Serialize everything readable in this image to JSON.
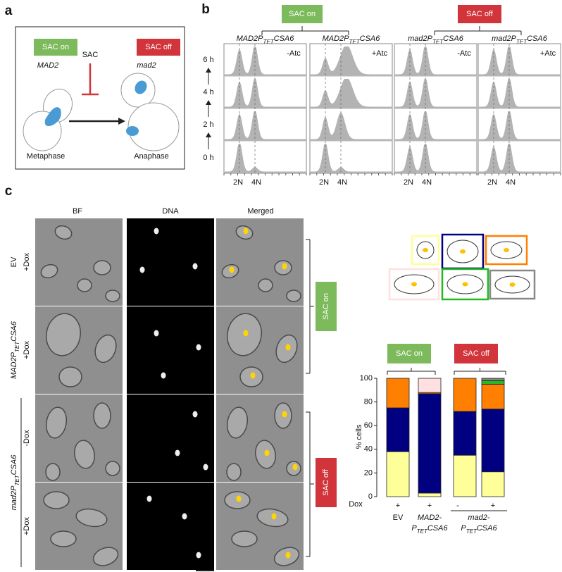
{
  "panel_a": {
    "label": "a",
    "sac_on": "SAC on",
    "sac_off": "SAC off",
    "sac": "SAC",
    "gene_on": "MAD2",
    "gene_off": "mad2",
    "stage_left": "Metaphase",
    "stage_right": "Anaphase"
  },
  "panel_b": {
    "label": "b",
    "sac_on": "SAC on",
    "sac_off": "SAC off",
    "columns": [
      {
        "title": [
          "MAD2P",
          "TET",
          "CSA6"
        ],
        "condition": "-Atc"
      },
      {
        "title": [
          "MAD2P",
          "TET",
          "CSA6"
        ],
        "condition": "+Atc"
      },
      {
        "title": [
          "mad2P",
          "TET",
          "CSA6"
        ],
        "condition": "-Atc"
      },
      {
        "title": [
          "mad2P",
          "TET",
          "CSA6"
        ],
        "condition": "+Atc"
      }
    ],
    "times": [
      "6 h",
      "4 h",
      "2 h",
      "0 h"
    ],
    "ploidy": [
      "2N",
      "4N"
    ]
  },
  "panel_c": {
    "label": "c",
    "channels": [
      "BF",
      "DNA",
      "Merged"
    ],
    "control": "EV",
    "strain_on": [
      "MAD2P",
      "TET",
      "CSA6"
    ],
    "strain_off": [
      "mad2P",
      "TET",
      "CSA6"
    ],
    "dox": [
      "+Dox",
      "+Dox",
      "-Dox",
      "+Dox"
    ],
    "sac_on": "SAC on",
    "sac_off": "SAC off"
  },
  "chart_data": {
    "type": "bar",
    "stacked": true,
    "y_label": "% cells",
    "ylim": [
      0,
      100
    ],
    "yticks": [
      0,
      20,
      40,
      60,
      80,
      100
    ],
    "dox_label": "Dox",
    "categories": [
      "+",
      "+",
      "-",
      "+"
    ],
    "group_titles": [
      "SAC on",
      "SAC off"
    ],
    "groups": [
      [
        [
          "EV"
        ]
      ],
      [
        [
          "MAD2-"
        ],
        [
          "P",
          "TET",
          "CSA6"
        ]
      ],
      [
        [
          "mad2-"
        ],
        [
          "P",
          "TET",
          "CSA6"
        ]
      ]
    ],
    "series": [
      {
        "color": "#ffff99",
        "values": [
          38,
          3,
          35,
          21
        ]
      },
      {
        "color": "#000080",
        "values": [
          37,
          84,
          37,
          53
        ]
      },
      {
        "color": "#ff8000",
        "values": [
          25,
          1,
          28,
          21
        ]
      },
      {
        "color": "#ffe0e0",
        "values": [
          0,
          12,
          0,
          0
        ]
      },
      {
        "color": "#22bb22",
        "values": [
          0,
          0,
          0,
          3
        ]
      },
      {
        "color": "#888888",
        "values": [
          0,
          0,
          0,
          2
        ]
      }
    ]
  }
}
